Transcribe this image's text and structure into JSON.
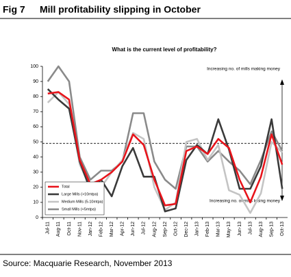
{
  "chart_data": {
    "type": "line",
    "figure_label": "Fig 7",
    "title": "Mill profitability slipping in October",
    "subtitle": "What is the current level of profitability?",
    "source": "Source: Macquarie Research, November 2013",
    "annotations": [
      "Increasing no. of mills making money",
      "Increasing no. of mills losing money"
    ],
    "reference_line": 49,
    "categories": [
      "Jul-11",
      "Aug-11",
      "Oct-11",
      "Nov-11",
      "Jan-12",
      "Feb-12",
      "Mar-12",
      "Apr-12",
      "Jun-12",
      "Jul-12",
      "Aug-12",
      "Sep-12",
      "Oct-12",
      "Dec-12",
      "Jan-13",
      "Feb-13",
      "Mar-13",
      "May-13",
      "Jun-13",
      "Jul-13",
      "Aug-13",
      "Sep-13",
      "Oct-13"
    ],
    "series": [
      {
        "name": "Total",
        "color": "#e8141b",
        "values": [
          82,
          83,
          78,
          38,
          22,
          25,
          30,
          37,
          55,
          48,
          25,
          8,
          9,
          44,
          47,
          42,
          52,
          46,
          25,
          10,
          27,
          55,
          35
        ]
      },
      {
        "name": "Large Mills (>10mtpa)",
        "color": "#3a3a3a",
        "values": [
          85,
          78,
          72,
          37,
          18,
          25,
          14,
          34,
          46,
          27,
          27,
          4,
          6,
          38,
          48,
          42,
          65,
          45,
          19,
          19,
          34,
          65,
          19
        ]
      },
      {
        "name": "Medium Mills (5-10mtpa)",
        "color": "#c4c4c4",
        "values": [
          76,
          83,
          75,
          35,
          20,
          20,
          30,
          38,
          56,
          52,
          20,
          5,
          10,
          50,
          52,
          38,
          48,
          18,
          15,
          3,
          16,
          50,
          43
        ]
      },
      {
        "name": "Small Mills (<5mtpa)",
        "color": "#8a8a8a",
        "values": [
          90,
          100,
          90,
          40,
          25,
          31,
          31,
          37,
          69,
          69,
          37,
          25,
          19,
          47,
          47,
          37,
          44,
          37,
          31,
          22,
          38,
          57,
          44
        ]
      }
    ],
    "ylim": [
      0,
      100
    ],
    "yticks": [
      0,
      10,
      20,
      30,
      40,
      50,
      60,
      70,
      80,
      90,
      100
    ]
  }
}
